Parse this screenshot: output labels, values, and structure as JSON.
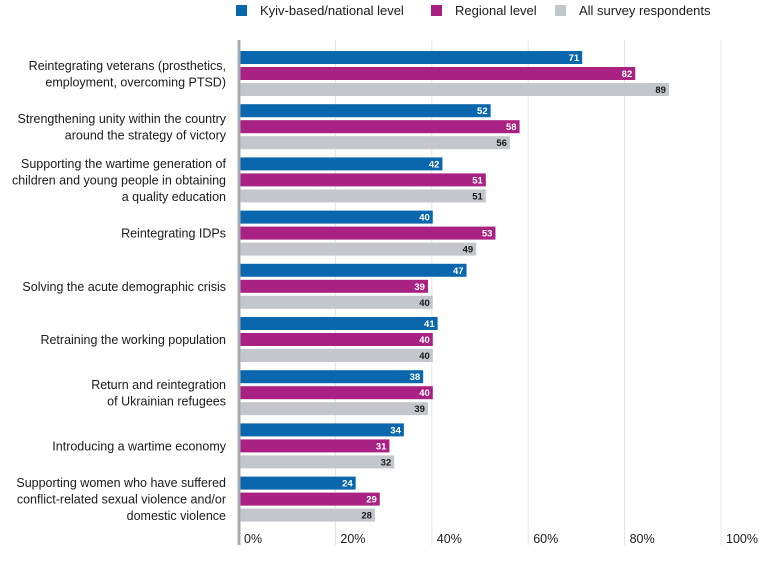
{
  "chart_data": {
    "type": "bar",
    "orientation": "horizontal",
    "categories": [
      [
        "Reintegrating veterans (prosthetics,",
        "employment, overcoming PTSD)"
      ],
      [
        "Strengthening unity within the country",
        "around the strategy of victory"
      ],
      [
        "Supporting the wartime generation of",
        "children and young people in obtaining",
        "a quality education"
      ],
      [
        "Reintegrating IDPs"
      ],
      [
        "Solving the acute demographic crisis"
      ],
      [
        "Retraining the working population"
      ],
      [
        "Return and reintegration",
        "of Ukrainian refugees"
      ],
      [
        "Introducing a wartime economy"
      ],
      [
        "Supporting women who have suffered",
        "conflict-related sexual violence and/or",
        "domestic violence"
      ]
    ],
    "series": [
      {
        "name": "Kyiv-based/national level",
        "color": "#0a67ad",
        "label_color": "#ffffff",
        "values": [
          71,
          52,
          42,
          40,
          47,
          41,
          38,
          34,
          24
        ]
      },
      {
        "name": "Regional level",
        "color": "#a92182",
        "label_color": "#ffffff",
        "values": [
          82,
          58,
          51,
          53,
          39,
          40,
          40,
          31,
          29
        ]
      },
      {
        "name": "All survey respondents",
        "color": "#c3c6ca",
        "label_color": "#1a1a1a",
        "values": [
          89,
          56,
          51,
          49,
          40,
          40,
          39,
          32,
          28
        ]
      }
    ],
    "xlim": [
      0,
      100
    ],
    "ticks": [
      "0%",
      "20%",
      "40%",
      "60%",
      "80%",
      "100%"
    ],
    "tick_values": [
      0,
      20,
      40,
      60,
      80,
      100
    ],
    "grid": true,
    "legend_position": "top"
  }
}
